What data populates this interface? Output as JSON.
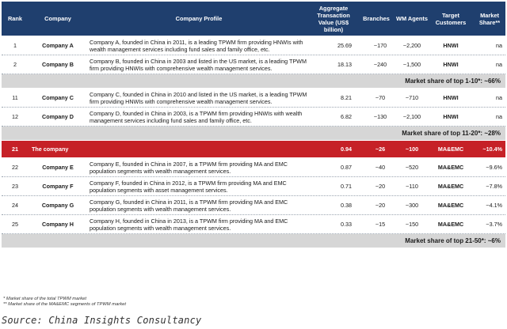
{
  "header": {
    "rank": "Rank",
    "company": "Company",
    "profile": "Company Profile",
    "value": "Aggregate Transaction Value (US$ billion)",
    "branches": "Branches",
    "agents": "WM Agents",
    "target": "Target Customers",
    "share": "Market Share**"
  },
  "rows": [
    {
      "rank": "1",
      "company": "Company A",
      "profile": "Company A, founded in China in 2011, is a leading TPWM firm providing HNWIs with wealth management services including fund sales and family office, etc.",
      "value": "25.69",
      "branches": "~170",
      "agents": "~2,200",
      "target": "HNWI",
      "share": "na"
    },
    {
      "rank": "2",
      "company": "Company B",
      "profile": "Company B, founded in China in 2003 and listed in the US market, is a leading TPWM firm providing HNWIs with comprehensive wealth management services.",
      "value": "18.13",
      "branches": "~240",
      "agents": "~1,500",
      "target": "HNWI",
      "share": "na"
    },
    {
      "rank": "11",
      "company": "Company C",
      "profile": "Company C, founded in China in 2010 and listed in the US market, is a leading TPWM  firm providing HNWIs with comprehensive wealth management services.",
      "value": "8.21",
      "branches": "~70",
      "agents": "~710",
      "target": "HNWI",
      "share": "na"
    },
    {
      "rank": "12",
      "company": "Company D",
      "profile": "Company D, founded in China in 2003, is a TPWM firm providing HNWIs with wealth management services including fund sales and family office, etc.",
      "value": "6.82",
      "branches": "~130",
      "agents": "~2,100",
      "target": "HNWI",
      "share": "na"
    },
    {
      "rank": "21",
      "company": "The company",
      "profile": "",
      "value": "0.94",
      "branches": "~26",
      "agents": "~100",
      "target": "MA&EMC",
      "share": "~10.4%"
    },
    {
      "rank": "22",
      "company": "Company E",
      "profile": "Company E, founded in China in 2007, is a TPWM firm providing MA and EMC population segments with wealth management services.",
      "value": "0.87",
      "branches": "~40",
      "agents": "~520",
      "target": "MA&EMC",
      "share": "~9.6%"
    },
    {
      "rank": "23",
      "company": "Company F",
      "profile": "Company F, founded in China in 2012, is a TPWM firm providing MA and EMC population segments with asset management services.",
      "value": "0.71",
      "branches": "~20",
      "agents": "~110",
      "target": "MA&EMC",
      "share": "~7.8%"
    },
    {
      "rank": "24",
      "company": "Company G",
      "profile": "Company G, founded in China in 2011, is a TPWM firm providing MA and EMC population segments with wealth management services.",
      "value": "0.38",
      "branches": "~20",
      "agents": "~300",
      "target": "MA&EMC",
      "share": "~4.1%"
    },
    {
      "rank": "25",
      "company": "Company H",
      "profile": "Company H, founded in China in 2013, is a TPWM firm providing MA and EMC population segments with wealth management services.",
      "value": "0.33",
      "branches": "~15",
      "agents": "~150",
      "target": "MA&EMC",
      "share": "~3.7%"
    }
  ],
  "summaries": {
    "top_1_10": "Market share of top 1-10*: ~66%",
    "top_11_20": "Market share of top 11-20*: ~28%",
    "top_21_50": "Market share of top 21-50*: ~6%"
  },
  "footnotes": [
    "*  Market share of the total TPWM market",
    "** Market share of the MA&EMC segments of TPWM market"
  ],
  "source": "Source: China Insights Consultancy",
  "colors": {
    "header_bg": "#1f3f6e",
    "highlight_bg": "#c62127",
    "summary_bg": "#d6d6d6"
  }
}
